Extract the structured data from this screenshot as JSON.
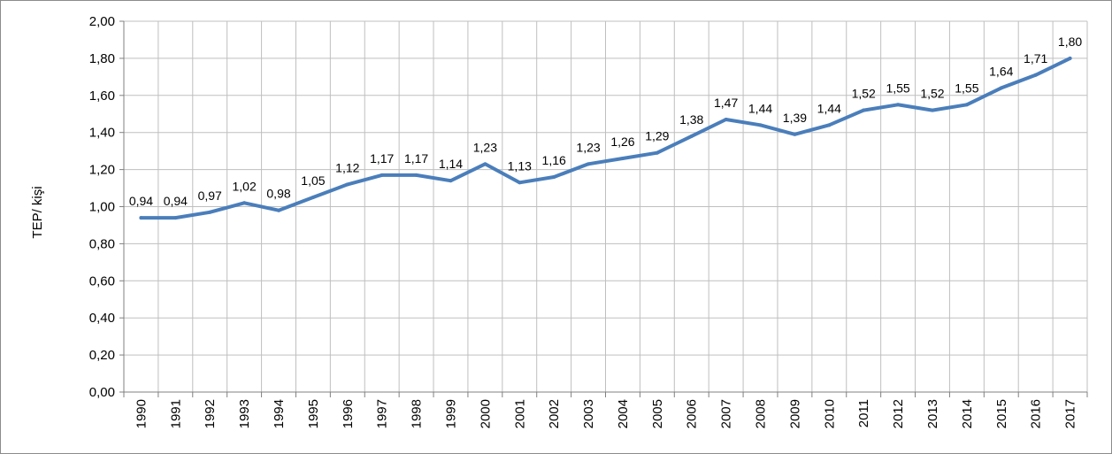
{
  "chart_data": {
    "type": "line",
    "ylabel": "TEP/ kişi",
    "xlabel": "",
    "title": "",
    "ylim": [
      0,
      2.0
    ],
    "ystep": 0.2,
    "grid": true,
    "line_color": "#4a7ebb",
    "categories": [
      "1990",
      "1991",
      "1992",
      "1993",
      "1994",
      "1995",
      "1996",
      "1997",
      "1998",
      "1999",
      "2000",
      "2001",
      "2002",
      "2003",
      "2004",
      "2005",
      "2006",
      "2007",
      "2008",
      "2009",
      "2010",
      "2011",
      "2012",
      "2013",
      "2014",
      "2015",
      "2016",
      "2017"
    ],
    "values": [
      0.94,
      0.94,
      0.97,
      1.02,
      0.98,
      1.05,
      1.12,
      1.17,
      1.17,
      1.14,
      1.23,
      1.13,
      1.16,
      1.23,
      1.26,
      1.29,
      1.38,
      1.47,
      1.44,
      1.39,
      1.44,
      1.52,
      1.55,
      1.52,
      1.55,
      1.64,
      1.71,
      1.8
    ],
    "labels": [
      "0,94",
      "0,94",
      "0,97",
      "1,02",
      "0,98",
      "1,05",
      "1,12",
      "1,17",
      "1,17",
      "1,14",
      "1,23",
      "1,13",
      "1,16",
      "1,23",
      "1,26",
      "1,29",
      "1,38",
      "1,47",
      "1,44",
      "1,39",
      "1,44",
      "1,52",
      "1,55",
      "1,52",
      "1,55",
      "1,64",
      "1,71",
      "1,80"
    ],
    "yticks": [
      "0,00",
      "0,20",
      "0,40",
      "0,60",
      "0,80",
      "1,00",
      "1,20",
      "1,40",
      "1,60",
      "1,80",
      "2,00"
    ]
  }
}
